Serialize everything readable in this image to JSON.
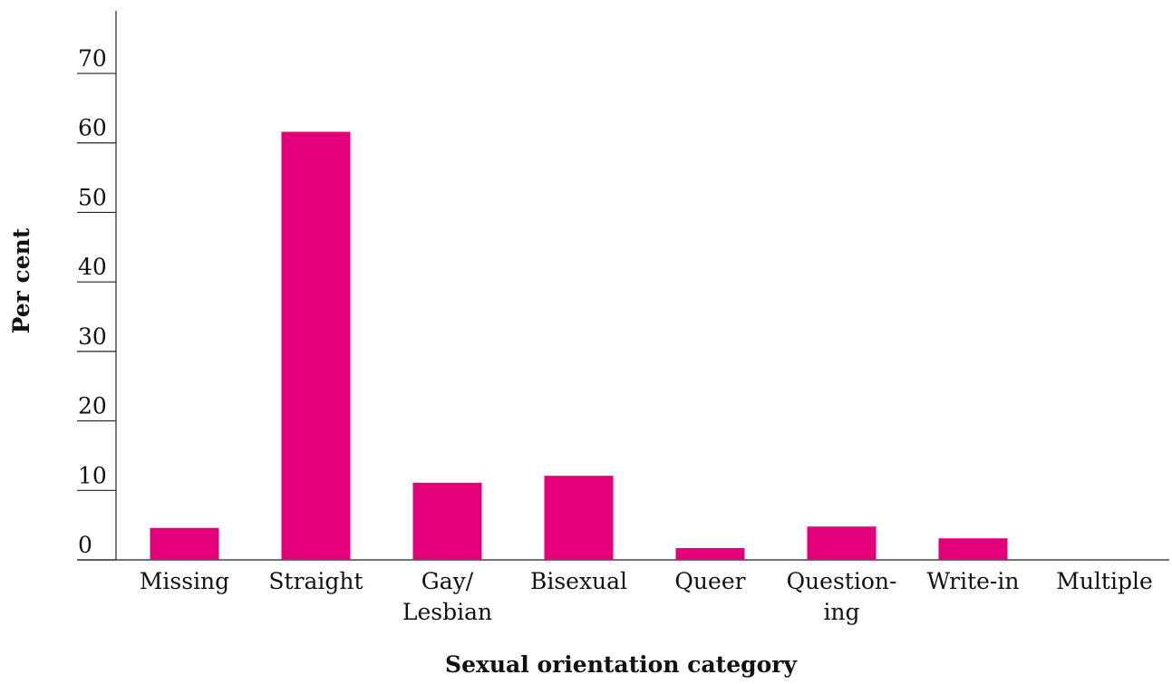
{
  "chart_data": {
    "type": "bar",
    "x_label": "Sexual orientation category",
    "y_label": "Per cent",
    "categories": [
      "Missing",
      "Straight",
      "Gay/\nLesbian",
      "Bisexual",
      "Queer",
      "Question-\ning",
      "Write-in",
      "Multiple"
    ],
    "values": [
      4.6,
      61.6,
      11.1,
      12.1,
      1.7,
      4.8,
      3.1,
      0
    ],
    "color": "#e2007a",
    "ylim": [
      0,
      79
    ],
    "yticks": [
      0,
      10,
      20,
      30,
      40,
      50,
      60,
      70
    ]
  }
}
